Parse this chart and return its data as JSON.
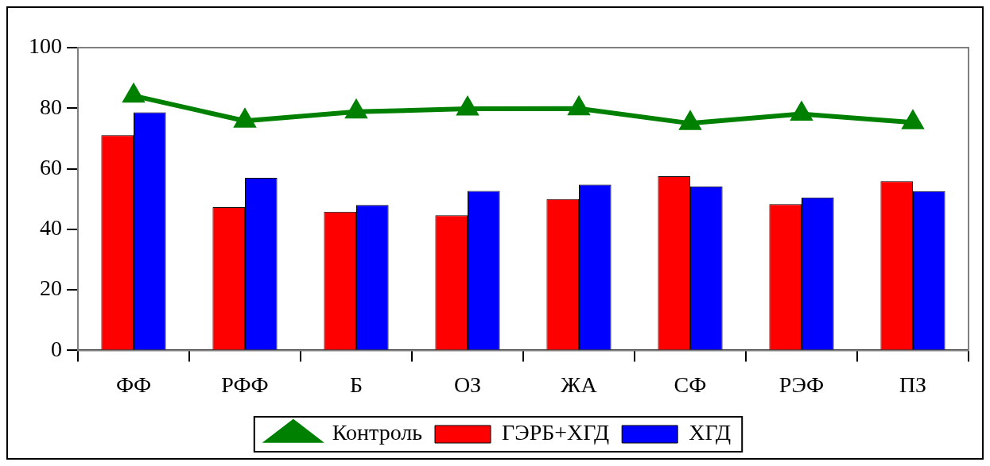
{
  "chart_data": {
    "type": "bar",
    "categories": [
      "ФФ",
      "РФФ",
      "Б",
      "ОЗ",
      "ЖА",
      "СФ",
      "РЭФ",
      "ПЗ"
    ],
    "series": [
      {
        "name": "ГЭРБ+ХГД",
        "color": "#ff0000",
        "values": [
          71.1,
          47.3,
          45.8,
          44.6,
          50.0,
          57.5,
          48.3,
          55.9
        ]
      },
      {
        "name": "ХГД",
        "color": "#0000ff",
        "values": [
          78.6,
          57.0,
          48.0,
          52.7,
          54.8,
          54.2,
          50.5,
          52.6
        ]
      },
      {
        "name": "Контроль",
        "type": "line",
        "color": "#008000",
        "values": [
          84.1,
          75.8,
          78.8,
          79.8,
          79.9,
          75.0,
          78.1,
          75.3
        ]
      }
    ],
    "ylim": [
      0,
      100
    ],
    "yticks": [
      0,
      20,
      40,
      60,
      80,
      100
    ],
    "grid": false,
    "legend": "bottom",
    "marker": "triangle",
    "line_style": "solid"
  }
}
